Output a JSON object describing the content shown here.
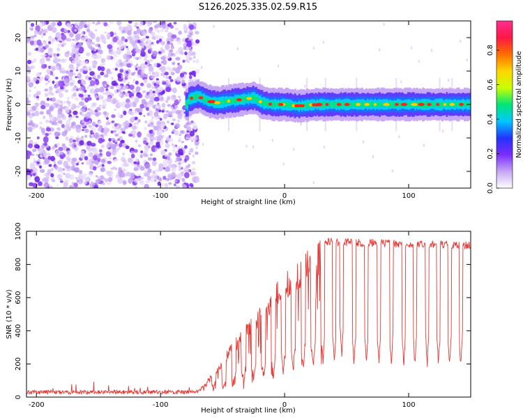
{
  "title": "S126.2025.335.02.59.R15",
  "colors": {
    "snr_line": "#e53935",
    "speck": "#7b2cff",
    "frame": "#000000"
  },
  "chart_data": [
    {
      "type": "heatmap",
      "name": "spectrogram",
      "xlabel": "Height of straight line (km)",
      "ylabel": "Frequency (Hz)",
      "xlim": [
        -208,
        150
      ],
      "ylim": [
        -25,
        25
      ],
      "xticks": [
        -200,
        -100,
        0,
        100
      ],
      "xtick_labels": [
        "-200",
        "-100",
        "0",
        "100"
      ],
      "yticks": [
        20,
        10,
        0,
        -10,
        -20
      ],
      "ytick_labels": [
        "20",
        "10",
        "0",
        "-10",
        "-20"
      ],
      "noise_region_x": [
        -208,
        -70
      ],
      "carrier_trace": [
        {
          "x": -78,
          "y": 1.5
        },
        {
          "x": -70,
          "y": 2.5
        },
        {
          "x": -62,
          "y": 1
        },
        {
          "x": -55,
          "y": 0.5
        },
        {
          "x": -45,
          "y": 1
        },
        {
          "x": -35,
          "y": 1.5
        },
        {
          "x": -25,
          "y": 2
        },
        {
          "x": -18,
          "y": 0.5
        },
        {
          "x": -10,
          "y": 0
        },
        {
          "x": 0,
          "y": 0
        },
        {
          "x": 10,
          "y": -0.5
        },
        {
          "x": 25,
          "y": 0
        },
        {
          "x": 50,
          "y": 0
        },
        {
          "x": 100,
          "y": 0
        },
        {
          "x": 150,
          "y": 0
        }
      ],
      "colorbar": {
        "label": "Normalized spectral amplitude",
        "range": [
          0,
          0.97
        ],
        "ticks": [
          0.0,
          0.2,
          0.4,
          0.6,
          0.8
        ],
        "tick_labels": [
          "0.0",
          "0.2",
          "0.4",
          "0.6",
          "0.8"
        ],
        "stops": [
          "#ffffff",
          "#c6a6f3",
          "#7b2cff",
          "#2233ff",
          "#00c8ff",
          "#00e676",
          "#c8ff00",
          "#ffd600",
          "#ff6d00",
          "#ff1744",
          "#ff2f92"
        ]
      }
    },
    {
      "type": "line",
      "name": "snr",
      "xlabel": "Height of straight line (km)",
      "ylabel": "SNR (10 * v/v)",
      "xlim": [
        -208,
        150
      ],
      "ylim": [
        0,
        1000
      ],
      "xticks": [
        -200,
        -100,
        0,
        100
      ],
      "xtick_labels": [
        "-200",
        "-100",
        "0",
        "100"
      ],
      "yticks": [
        0,
        200,
        400,
        600,
        800,
        1000
      ],
      "ytick_labels": [
        "0",
        "200",
        "400",
        "600",
        "800",
        "1000"
      ],
      "envelope": [
        {
          "x": -208,
          "y": 30
        },
        {
          "x": -70,
          "y": 40
        },
        {
          "x": -65,
          "y": 80
        },
        {
          "x": -55,
          "y": 180
        },
        {
          "x": -45,
          "y": 300
        },
        {
          "x": -35,
          "y": 400
        },
        {
          "x": -25,
          "y": 500
        },
        {
          "x": -15,
          "y": 600
        },
        {
          "x": -5,
          "y": 720
        },
        {
          "x": 5,
          "y": 780
        },
        {
          "x": 15,
          "y": 860
        },
        {
          "x": 25,
          "y": 930
        },
        {
          "x": 32,
          "y": 960
        },
        {
          "x": 150,
          "y": 940
        }
      ],
      "dropout_centers_x": [
        -57,
        -49,
        -41,
        -33,
        -25,
        -17,
        -9,
        -1,
        7,
        15,
        23,
        31,
        40,
        46,
        56,
        66,
        76,
        86,
        96,
        105,
        115,
        124,
        133,
        142
      ],
      "dropout_floor": [
        60,
        70,
        80,
        100,
        110,
        120,
        140,
        160,
        170,
        180,
        180,
        200,
        200,
        260,
        200,
        200,
        200,
        200,
        200,
        200,
        200,
        200,
        200,
        200
      ]
    }
  ]
}
